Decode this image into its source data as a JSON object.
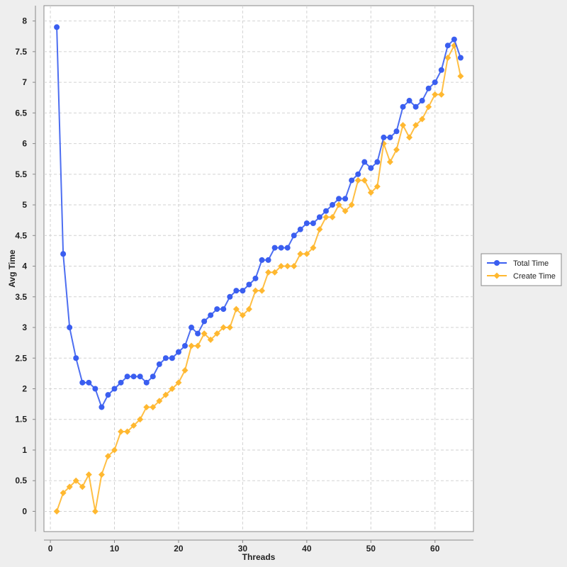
{
  "chart_data": {
    "type": "line",
    "title": "",
    "xlabel": "Threads",
    "ylabel": "Avg Time",
    "xlim": [
      -1,
      66
    ],
    "ylim": [
      -0.33,
      8.25
    ],
    "x_ticks": [
      0,
      10,
      20,
      30,
      40,
      50,
      60
    ],
    "y_ticks": [
      0,
      0.5,
      1,
      1.5,
      2,
      2.5,
      3,
      3.5,
      4,
      4.5,
      5,
      5.5,
      6,
      6.5,
      7,
      7.5,
      8
    ],
    "grid": true,
    "legend_position": "right",
    "x": [
      1,
      2,
      3,
      4,
      5,
      6,
      7,
      8,
      9,
      10,
      11,
      12,
      13,
      14,
      15,
      16,
      17,
      18,
      19,
      20,
      21,
      22,
      23,
      24,
      25,
      26,
      27,
      28,
      29,
      30,
      31,
      32,
      33,
      34,
      35,
      36,
      37,
      38,
      39,
      40,
      41,
      42,
      43,
      44,
      45,
      46,
      47,
      48,
      49,
      50,
      51,
      52,
      53,
      54,
      55,
      56,
      57,
      58,
      59,
      60,
      61,
      62,
      63,
      64
    ],
    "series": [
      {
        "name": "Total Time",
        "color": "#3a5ef0",
        "marker": "circle",
        "values": [
          7.9,
          4.2,
          3.0,
          2.5,
          2.1,
          2.1,
          2.0,
          1.7,
          1.9,
          2.0,
          2.1,
          2.2,
          2.2,
          2.2,
          2.1,
          2.2,
          2.4,
          2.5,
          2.5,
          2.6,
          2.7,
          3.0,
          2.9,
          3.1,
          3.2,
          3.3,
          3.3,
          3.5,
          3.6,
          3.6,
          3.7,
          3.8,
          4.1,
          4.1,
          4.3,
          4.3,
          4.3,
          4.5,
          4.6,
          4.7,
          4.7,
          4.8,
          4.9,
          5.0,
          5.1,
          5.1,
          5.4,
          5.5,
          5.7,
          5.6,
          5.7,
          6.1,
          6.1,
          6.2,
          6.6,
          6.7,
          6.6,
          6.7,
          6.9,
          7.0,
          7.2,
          7.6,
          7.7,
          7.4
        ]
      },
      {
        "name": "Create Time",
        "color": "#ffb830",
        "marker": "diamond",
        "values": [
          0.0,
          0.3,
          0.4,
          0.5,
          0.4,
          0.6,
          0.0,
          0.6,
          0.9,
          1.0,
          1.3,
          1.3,
          1.4,
          1.5,
          1.7,
          1.7,
          1.8,
          1.9,
          2.0,
          2.1,
          2.3,
          2.7,
          2.7,
          2.9,
          2.8,
          2.9,
          3.0,
          3.0,
          3.3,
          3.2,
          3.3,
          3.6,
          3.6,
          3.9,
          3.9,
          4.0,
          4.0,
          4.0,
          4.2,
          4.2,
          4.3,
          4.6,
          4.8,
          4.8,
          5.0,
          4.9,
          5.0,
          5.4,
          5.4,
          5.2,
          5.3,
          6.0,
          5.7,
          5.9,
          6.3,
          6.1,
          6.3,
          6.4,
          6.6,
          6.8,
          6.8,
          7.4,
          7.6,
          7.1
        ]
      }
    ]
  }
}
